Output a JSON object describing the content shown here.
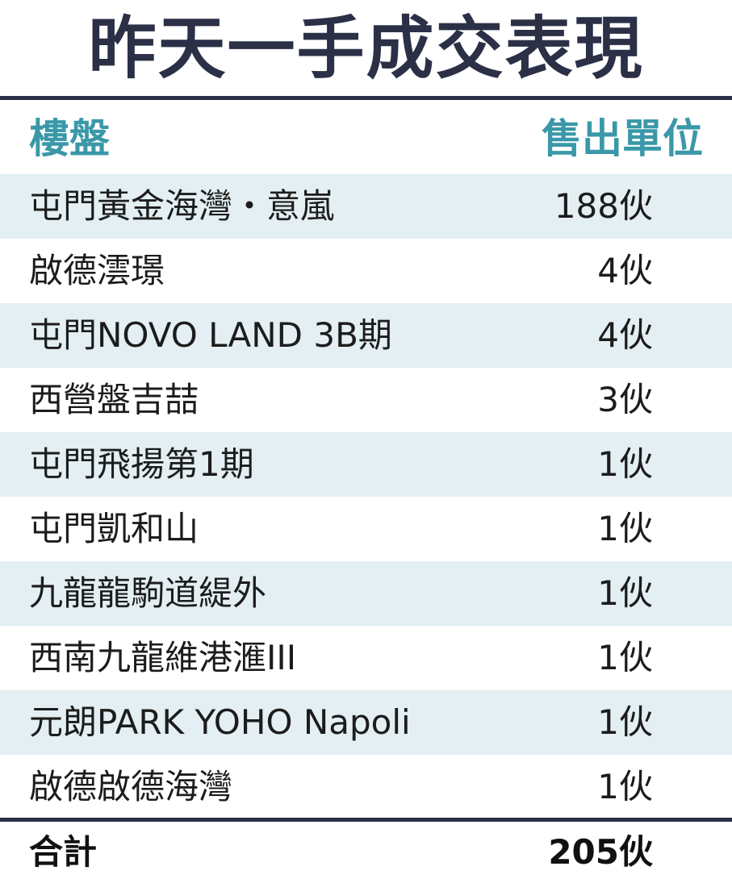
{
  "title": "昨天一手成交表現",
  "table": {
    "headers": {
      "property": "樓盤",
      "units_sold": "售出單位"
    },
    "rows": [
      {
        "property": "屯門黃金海灣・意嵐",
        "units": "188伙"
      },
      {
        "property": "啟德澐璟",
        "units": "4伙"
      },
      {
        "property": "屯門NOVO LAND 3B期",
        "units": "4伙"
      },
      {
        "property": "西營盤吉喆",
        "units": "3伙"
      },
      {
        "property": "屯門飛揚第1期",
        "units": "1伙"
      },
      {
        "property": "屯門凱和山",
        "units": "1伙"
      },
      {
        "property": "九龍龍駒道緹外",
        "units": "1伙"
      },
      {
        "property": "西南九龍維港滙III",
        "units": "1伙"
      },
      {
        "property": "元朗PARK YOHO Napoli",
        "units": "1伙"
      },
      {
        "property": "啟德啟德海灣",
        "units": "1伙"
      }
    ],
    "total": {
      "label": "合計",
      "units": "205伙"
    }
  },
  "colors": {
    "title": "#2b3047",
    "header_text": "#3a98a8",
    "row_shade": "#e3eff2",
    "rule": "#2b3047"
  }
}
